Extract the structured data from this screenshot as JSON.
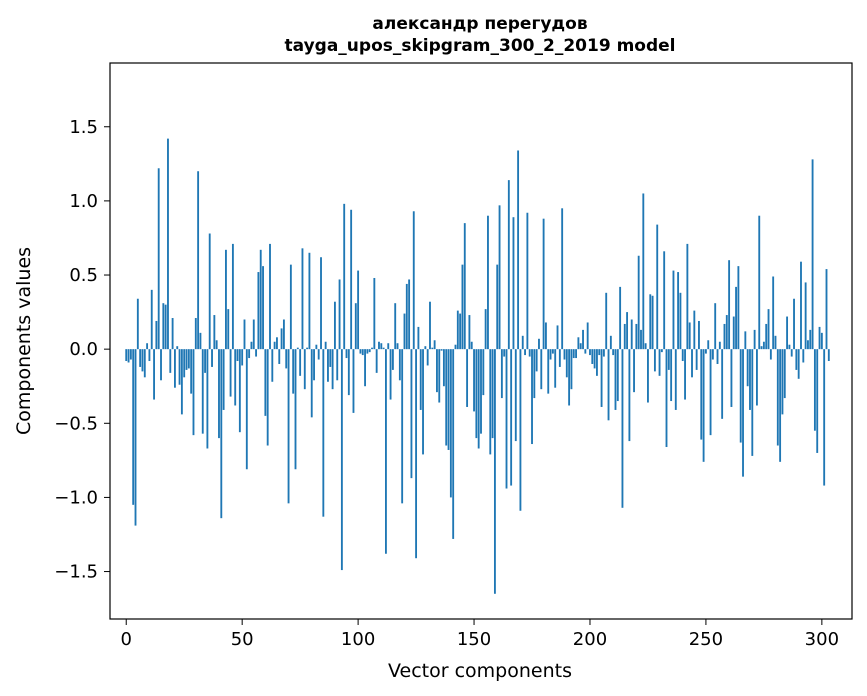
{
  "chart_data": {
    "type": "bar",
    "title": "александр перегудов",
    "subtitle": "tayga_upos_skipgram_300_2_2019 model",
    "xlabel": "Vector components",
    "ylabel": "Components values",
    "xlim": [
      -7,
      313
    ],
    "ylim": [
      -1.82,
      1.93
    ],
    "xticks": [
      0,
      50,
      100,
      150,
      200,
      250,
      300
    ],
    "yticks": [
      -1.5,
      -1.0,
      -0.5,
      0.0,
      0.5,
      1.0,
      1.5
    ],
    "ytick_labels": [
      "−1.5",
      "−1.0",
      "−0.5",
      "0.0",
      "0.5",
      "1.0",
      "1.5"
    ],
    "color": "#1f77b4",
    "grid": false,
    "values": [
      -0.08,
      -0.09,
      -0.07,
      -1.05,
      -1.19,
      0.34,
      -0.12,
      -0.15,
      -0.19,
      0.04,
      -0.08,
      0.4,
      -0.34,
      0.19,
      1.22,
      -0.21,
      0.31,
      0.3,
      1.42,
      -0.16,
      0.21,
      -0.26,
      0.02,
      -0.24,
      -0.44,
      -0.19,
      -0.14,
      -0.13,
      -0.3,
      -0.58,
      0.21,
      1.2,
      0.11,
      -0.57,
      -0.16,
      -0.67,
      0.78,
      -0.12,
      0.23,
      0.06,
      -0.6,
      -1.14,
      -0.41,
      0.67,
      0.27,
      -0.32,
      0.71,
      -0.38,
      -0.08,
      -0.56,
      -0.11,
      0.2,
      -0.81,
      -0.06,
      0.05,
      0.2,
      -0.05,
      0.52,
      0.67,
      0.56,
      -0.45,
      -0.65,
      0.71,
      -0.22,
      0.05,
      0.08,
      -0.1,
      0.14,
      0.2,
      -0.13,
      -1.04,
      0.57,
      -0.3,
      -0.81,
      0.01,
      -0.18,
      0.68,
      -0.27,
      0.01,
      0.65,
      -0.46,
      -0.21,
      0.03,
      -0.07,
      0.62,
      -1.13,
      0.05,
      -0.22,
      -0.12,
      -0.27,
      0.32,
      -0.21,
      0.47,
      -1.49,
      0.98,
      -0.06,
      -0.31,
      0.94,
      -0.43,
      0.31,
      0.53,
      -0.03,
      -0.04,
      -0.25,
      -0.03,
      -0.02,
      0.01,
      0.48,
      -0.16,
      0.05,
      0.04,
      0.01,
      -1.38,
      0.04,
      -0.34,
      -0.14,
      0.31,
      0.04,
      -0.21,
      -1.04,
      0.24,
      0.44,
      0.47,
      -0.87,
      0.93,
      -1.41,
      0.15,
      -0.41,
      -0.71,
      0.02,
      -0.11,
      0.32,
      0.01,
      0.06,
      -0.29,
      -0.36,
      -0.01,
      -0.25,
      -0.65,
      -0.68,
      -1.0,
      -1.28,
      0.03,
      0.26,
      0.24,
      0.57,
      0.85,
      -0.39,
      0.23,
      0.05,
      -0.42,
      -0.6,
      -0.67,
      -0.57,
      -0.31,
      0.27,
      0.9,
      -0.71,
      -0.6,
      -1.65,
      0.57,
      0.97,
      -0.33,
      -0.05,
      -0.94,
      1.14,
      -0.92,
      0.89,
      -0.62,
      1.34,
      -1.09,
      0.09,
      -0.04,
      0.92,
      -0.05,
      -0.64,
      -0.33,
      -0.15,
      0.07,
      -0.27,
      0.88,
      0.18,
      -0.3,
      -0.07,
      -0.03,
      -0.26,
      0.16,
      -0.12,
      0.95,
      -0.07,
      -0.19,
      -0.38,
      -0.27,
      -0.06,
      -0.06,
      0.08,
      0.04,
      0.13,
      -0.03,
      0.18,
      -0.04,
      -0.1,
      -0.13,
      -0.18,
      -0.04,
      -0.39,
      -0.05,
      0.38,
      -0.48,
      0.09,
      -0.04,
      -0.41,
      -0.35,
      0.42,
      -1.07,
      0.17,
      0.25,
      -0.62,
      0.2,
      -0.29,
      0.17,
      0.63,
      0.13,
      1.05,
      0.04,
      -0.36,
      0.37,
      0.36,
      -0.15,
      0.84,
      -0.18,
      -0.02,
      0.66,
      -0.66,
      -0.14,
      -0.35,
      0.53,
      -0.41,
      0.52,
      0.38,
      -0.08,
      -0.34,
      0.71,
      0.18,
      -0.19,
      0.26,
      -0.14,
      0.19,
      -0.61,
      -0.76,
      -0.03,
      0.06,
      -0.58,
      -0.07,
      0.31,
      -0.1,
      0.05,
      -0.47,
      0.17,
      0.23,
      0.6,
      -0.39,
      0.22,
      0.42,
      0.56,
      -0.63,
      -0.86,
      0.12,
      -0.25,
      -0.41,
      -0.72,
      0.13,
      -0.38,
      0.9,
      0.02,
      0.05,
      0.17,
      0.27,
      -0.07,
      0.49,
      0.09,
      -0.65,
      -0.76,
      -0.44,
      -0.33,
      0.22,
      0.03,
      -0.05,
      0.34,
      -0.14,
      -0.2,
      0.59,
      -0.09,
      0.45,
      0.06,
      0.13,
      1.28,
      -0.55,
      -0.7,
      0.15,
      0.11,
      -0.92,
      0.54,
      -0.08
    ]
  }
}
